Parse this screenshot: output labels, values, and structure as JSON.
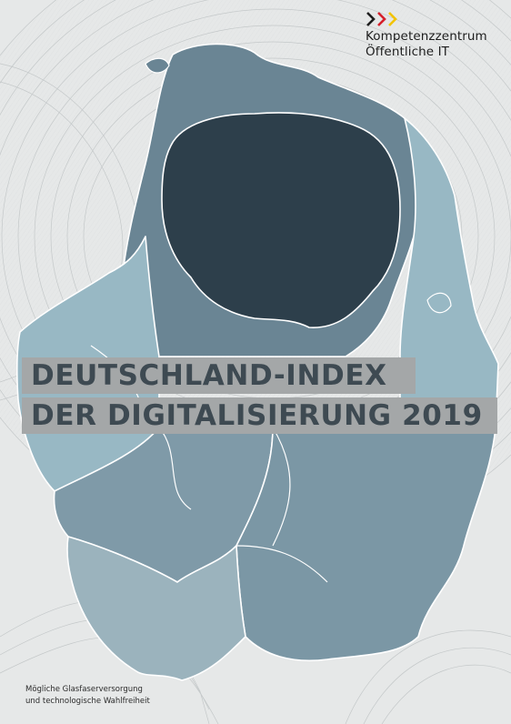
{
  "logo": {
    "line1": "Kompetenzzentrum",
    "line2": "Öffentliche IT",
    "chevron_colors": [
      "#1e1e1e",
      "#d6202b",
      "#f2c300"
    ]
  },
  "title": {
    "line1": "DEUTSCHLAND-INDEX",
    "line2": "DER DIGITALISIERUNG 2019"
  },
  "subtitle": {
    "line1": "Mögliche Glasfaserversorgung",
    "line2": "und technologische Wahlfreiheit"
  },
  "colors": {
    "background": "#e6e8e8",
    "map_dark": "#2d3f4b",
    "map_mid": "#6a8594",
    "map_light": "#98b8c4",
    "title_band": "#a4a7a8",
    "title_text": "#3e4a52"
  }
}
